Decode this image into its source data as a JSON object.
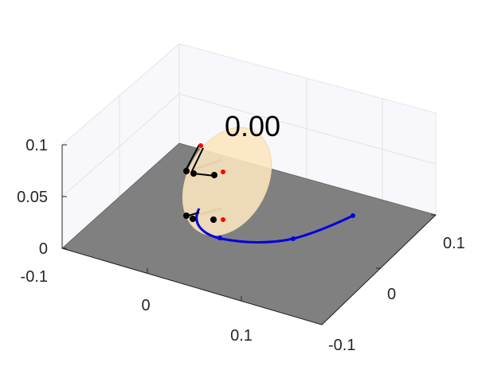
{
  "time_label": "0.00",
  "z_axis": {
    "ticks": [
      "0.1",
      "0.05",
      "0",
      "-0.1"
    ]
  },
  "x_axis": {
    "ticks": [
      "0",
      "0.1"
    ]
  },
  "y_axis": {
    "ticks": [
      "0.1",
      "0",
      "-0.1"
    ]
  },
  "colors": {
    "floor": "#808080",
    "pane": "#f7f7fc",
    "disc": "#fbe6bf",
    "trajectory": "#0000e0",
    "contact_points": "#000000",
    "force_tips": "#ff0000"
  }
}
